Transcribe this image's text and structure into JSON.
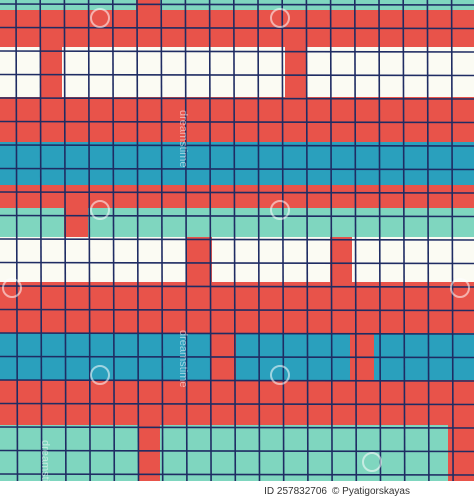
{
  "watermark": "dreamstime",
  "footer": {
    "id": "ID 257832706",
    "credit": "© Pyatigorskayas"
  }
}
